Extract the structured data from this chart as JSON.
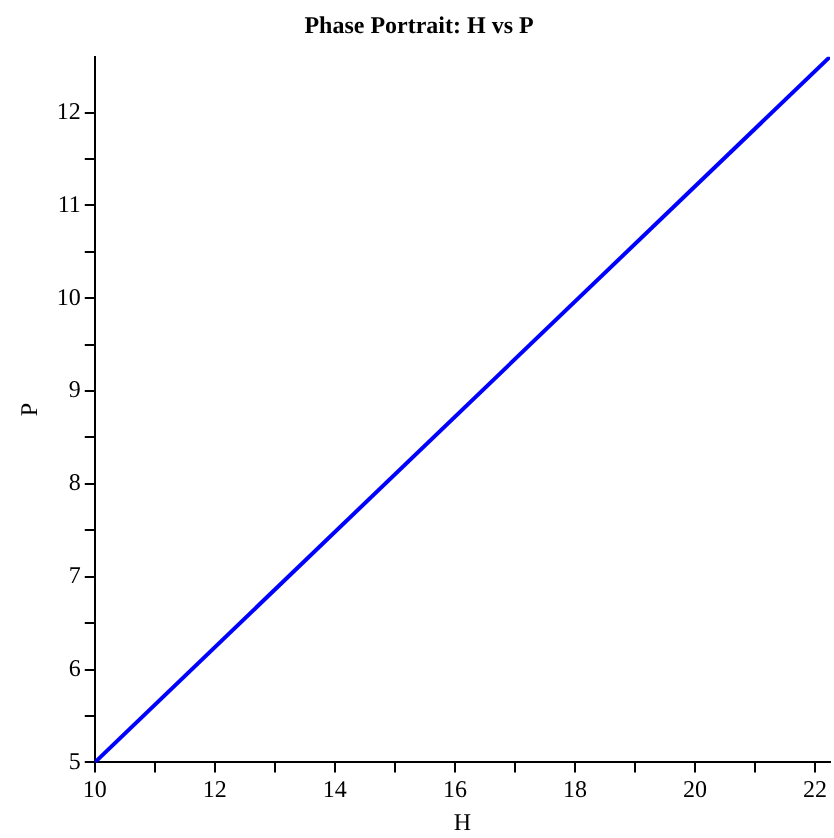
{
  "chart_data": {
    "type": "line",
    "title": "Phase Portrait: H vs P",
    "xlabel": "H",
    "ylabel": "P",
    "x": [
      10,
      22.25
    ],
    "series": [
      {
        "color": "#0000ff",
        "values": [
          5,
          12.6
        ]
      }
    ],
    "xlim": [
      10,
      22.25
    ],
    "ylim": [
      5,
      12.6
    ],
    "xticks": [
      10,
      {
        "value": 11,
        "label": null
      },
      12,
      {
        "value": 13,
        "label": null
      },
      14,
      {
        "value": 15,
        "label": null
      },
      16,
      {
        "value": 17,
        "label": null
      },
      18,
      {
        "value": 19,
        "label": null
      },
      20,
      {
        "value": 21,
        "label": null
      },
      22
    ],
    "yticks": [
      5,
      {
        "value": 5.5,
        "label": null
      },
      6,
      {
        "value": 6.5,
        "label": null
      },
      7,
      {
        "value": 7.5,
        "label": null
      },
      8,
      {
        "value": 8.5,
        "label": null
      },
      9,
      {
        "value": 9.5,
        "label": null
      },
      10,
      {
        "value": 10.5,
        "label": null
      },
      11,
      {
        "value": 11.5,
        "label": null
      },
      12
    ],
    "grid": false,
    "legend": false,
    "marker": "none",
    "line_style": "solid"
  }
}
